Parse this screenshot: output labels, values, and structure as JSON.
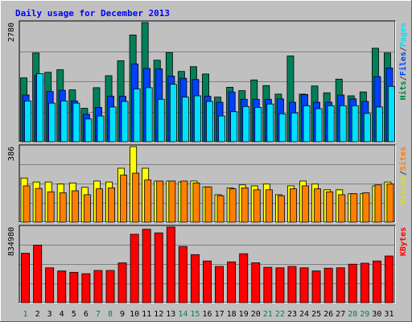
{
  "chart_data": {
    "type": "bar",
    "title": "Daily usage for December 2013",
    "categories": [
      "1",
      "2",
      "3",
      "4",
      "5",
      "6",
      "7",
      "8",
      "9",
      "10",
      "11",
      "12",
      "13",
      "14",
      "15",
      "16",
      "17",
      "18",
      "19",
      "20",
      "21",
      "22",
      "23",
      "24",
      "25",
      "26",
      "27",
      "28",
      "29",
      "30",
      "31"
    ],
    "weekend_days": [
      "1",
      "7",
      "8",
      "14",
      "15",
      "21",
      "22",
      "28",
      "29"
    ],
    "panels": [
      {
        "id": "hits",
        "max_label": "2780",
        "ymax": 2780,
        "right_labels": [
          {
            "text": "Hits",
            "color": "#008040"
          },
          {
            "text": "/",
            "color": "#404040"
          },
          {
            "text": "Files",
            "color": "#0040ff"
          },
          {
            "text": "/",
            "color": "#404040"
          },
          {
            "text": "Pages",
            "color": "#00e0ff"
          }
        ],
        "series": [
          {
            "name": "Hits",
            "color": "#00805a",
            "values": [
              1490,
              2070,
              1620,
              1680,
              1210,
              780,
              1260,
              1540,
              1890,
              2490,
              2780,
              1900,
              2080,
              1640,
              1750,
              1580,
              1040,
              1270,
              1190,
              1440,
              1310,
              1110,
              2000,
              1110,
              1300,
              1140,
              1460,
              1070,
              1160,
              2180,
              2070
            ]
          },
          {
            "name": "Files",
            "color": "#0040ff",
            "values": [
              1090,
              1540,
              1170,
              1200,
              950,
              640,
              800,
              1060,
              1060,
              1810,
              1710,
              1700,
              1530,
              1480,
              1450,
              1060,
              920,
              1160,
              990,
              990,
              990,
              1000,
              920,
              1100,
              920,
              920,
              1090,
              1000,
              940,
              1520,
              1720
            ]
          },
          {
            "name": "Pages",
            "color": "#00e0ff",
            "values": [
              950,
              1590,
              900,
              950,
              900,
              530,
              600,
              810,
              940,
              1230,
              1260,
              990,
              1340,
              1040,
              1070,
              940,
              600,
              700,
              820,
              800,
              880,
              650,
              670,
              840,
              770,
              840,
              840,
              840,
              660,
              810,
              1290
            ]
          }
        ]
      },
      {
        "id": "visits",
        "max_label": "386",
        "ymax": 386,
        "right_labels": [
          {
            "text": "Visits",
            "color": "#e0e000"
          },
          {
            "text": "/",
            "color": "#404040"
          },
          {
            "text": "Sites",
            "color": "#ff8000"
          }
        ],
        "series": [
          {
            "name": "Visits",
            "color": "#ffff00",
            "values": [
              225,
              205,
              205,
              195,
              200,
              178,
              210,
              205,
              275,
              385,
              275,
              210,
              210,
              205,
              210,
              180,
              140,
              175,
              190,
              185,
              195,
              140,
              185,
              210,
              195,
              165,
              165,
              145,
              145,
              185,
              205
            ]
          },
          {
            "name": "Sites",
            "color": "#ff8000",
            "values": [
              185,
              172,
              155,
              150,
              160,
              140,
              170,
              175,
              240,
              250,
              215,
              210,
              210,
              210,
              200,
              180,
              135,
              170,
              175,
              165,
              165,
              135,
              170,
              185,
              170,
              155,
              140,
              145,
              150,
              190,
              195
            ]
          }
        ]
      },
      {
        "id": "kbytes",
        "max_label": "834980",
        "ymax": 834980,
        "right_labels": [
          {
            "text": "KBytes",
            "color": "#ff0000"
          }
        ],
        "series": [
          {
            "name": "KBytes",
            "color": "#ff0000",
            "values": [
              545000,
              635000,
              385000,
              350000,
              335000,
              320000,
              355000,
              355000,
              440000,
              755000,
              810000,
              770000,
              834980,
              620000,
              530000,
              460000,
              400000,
              450000,
              540000,
              440000,
              390000,
              385000,
              400000,
              385000,
              350000,
              380000,
              385000,
              425000,
              435000,
              460000,
              515000
            ]
          }
        ]
      }
    ]
  }
}
